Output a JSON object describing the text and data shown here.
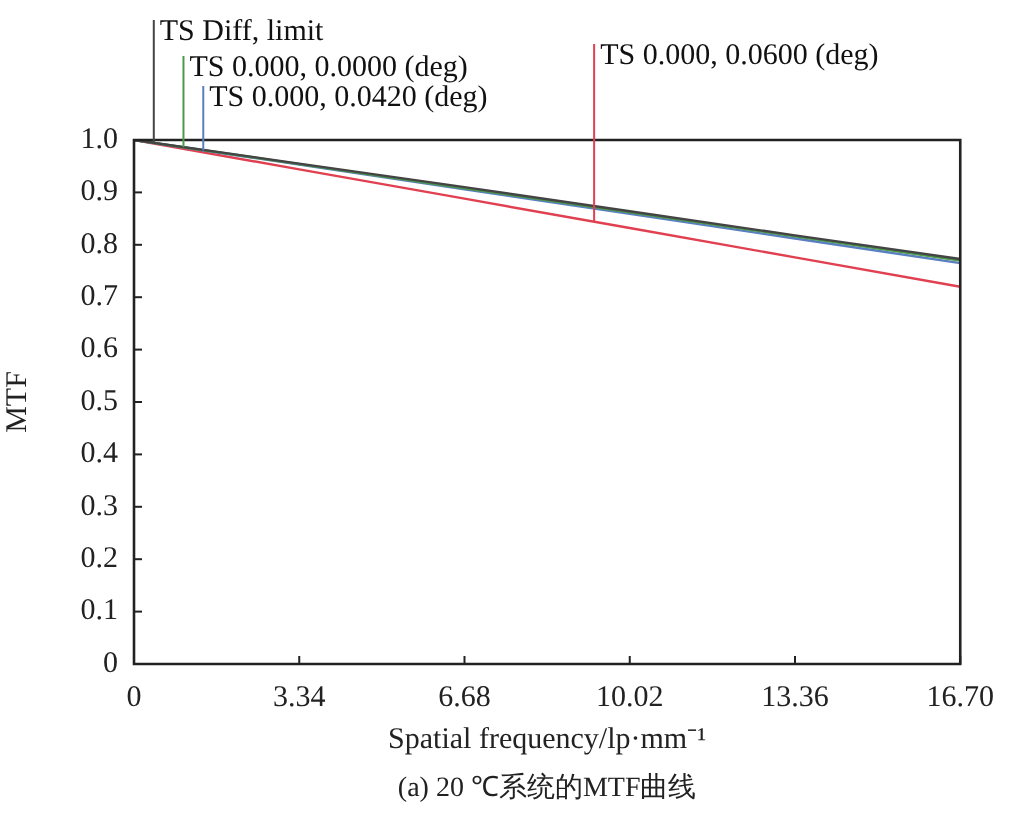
{
  "chart_data": {
    "type": "line",
    "xlabel": "Spatial frequency/lp·mm⁻¹",
    "ylabel": "MTF",
    "annotations": [
      "(a) 20 ℃系统的MTF曲线"
    ],
    "x": [
      0,
      3.34,
      6.68,
      10.02,
      13.36,
      16.7
    ],
    "series": [
      {
        "name": "TS Diff, limit",
        "color": "#444444",
        "values": [
          1,
          0.955,
          0.91,
          0.864,
          0.818,
          0.773
        ]
      },
      {
        "name": "TS 0.000, 0.0000 (deg)",
        "color": "#4a9a4a",
        "values": [
          1,
          0.954,
          0.908,
          0.862,
          0.816,
          0.77
        ]
      },
      {
        "name": "TS 0.000, 0.0420 (deg)",
        "color": "#5a7fc0",
        "values": [
          1,
          0.953,
          0.906,
          0.859,
          0.812,
          0.765
        ]
      },
      {
        "name": "TS 0.000, 0.0600 (deg)",
        "color": "#e04050",
        "values": [
          1,
          0.944,
          0.888,
          0.832,
          0.776,
          0.72
        ]
      }
    ],
    "xlim": [
      0,
      16.7
    ],
    "xticks": [
      0,
      3.34,
      6.68,
      10.02,
      13.36,
      {
        "value": 16.7,
        "label": "16.70"
      }
    ],
    "ylim": [
      0,
      1
    ],
    "yticks": [
      0,
      0.1,
      0.2,
      0.3,
      0.4,
      0.5,
      0.6,
      0.7,
      0.8,
      0.9,
      {
        "value": 1,
        "label": "1.0"
      }
    ],
    "grid": false,
    "legend": "top",
    "marker": "none",
    "line_style": "solid"
  }
}
